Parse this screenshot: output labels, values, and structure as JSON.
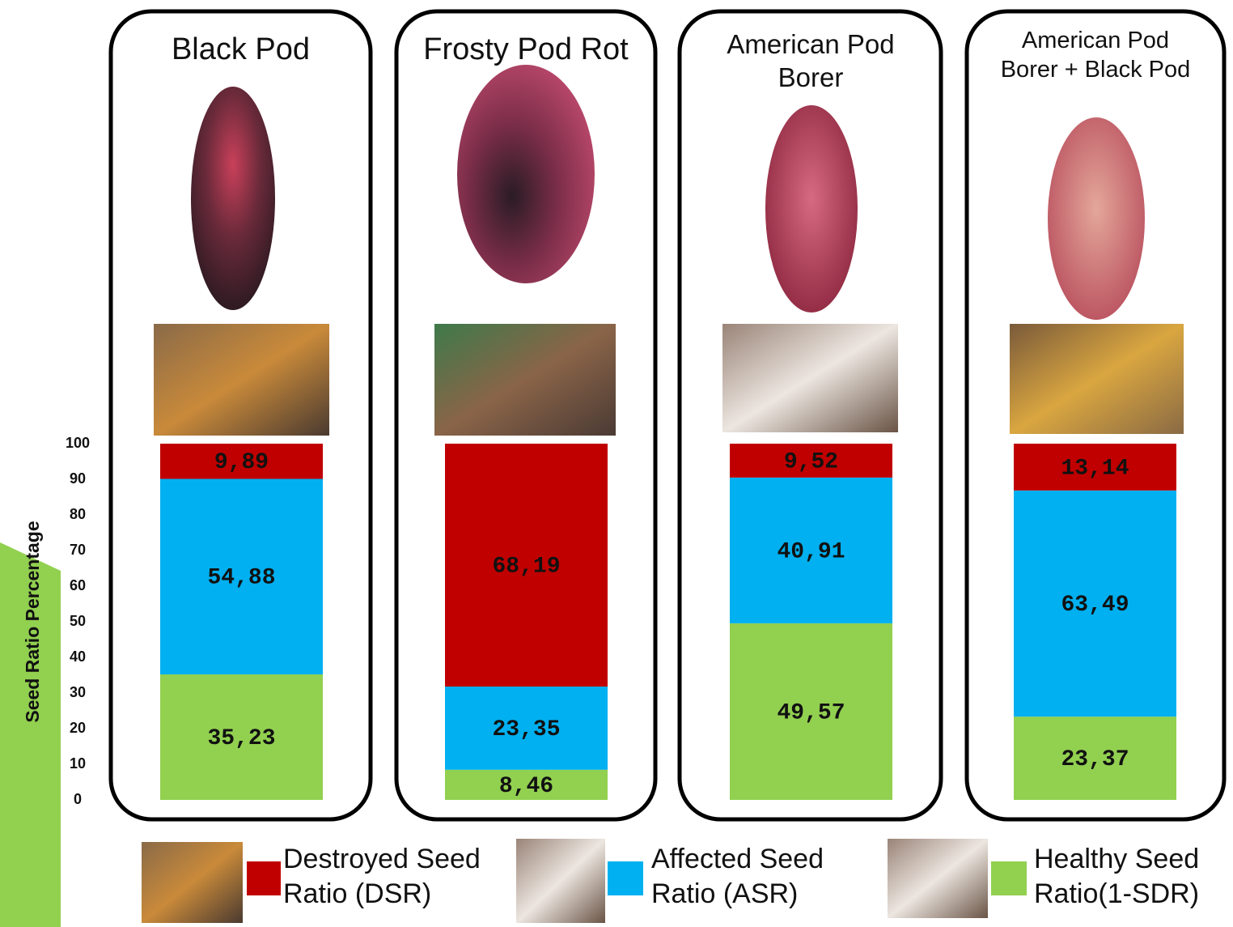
{
  "chart_data": {
    "type": "stacked-bar",
    "ylabel": "Seed Ratio Percentage",
    "categories": [
      "Black Pod",
      "Frosty Pod Rot",
      "American Pod Borer",
      "American Pod Borer + Black Pod"
    ],
    "series": [
      {
        "name": "Destroyed Seed Ratio (DSR)",
        "color": "#c00000",
        "values": [
          9.89,
          68.19,
          9.52,
          13.14
        ],
        "value_labels": [
          "9,89",
          "68,19",
          "9,52",
          "13,14"
        ]
      },
      {
        "name": "Affected Seed Ratio (ASR)",
        "color": "#00b0f0",
        "values": [
          54.88,
          23.35,
          40.91,
          63.49
        ],
        "value_labels": [
          "54,88",
          "23,35",
          "40,91",
          "63,49"
        ]
      },
      {
        "name": "Healthy Seed Ratio(1-SDR)",
        "color": "#92d050",
        "values": [
          35.23,
          8.46,
          49.57,
          23.37
        ],
        "value_labels": [
          "35,23",
          "8,46",
          "49,57",
          "23,37"
        ]
      }
    ],
    "ylim": [
      0,
      100
    ],
    "yticks": [
      0,
      10,
      20,
      30,
      40,
      50,
      60,
      70,
      80,
      90,
      100
    ]
  }
}
